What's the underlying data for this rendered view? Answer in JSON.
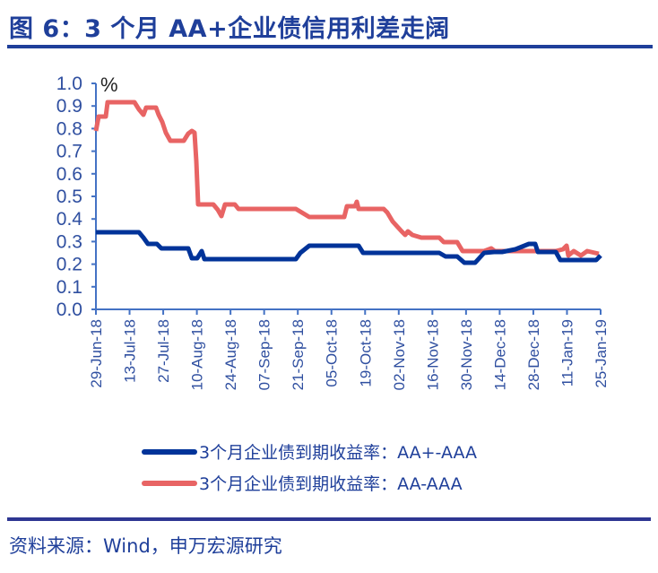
{
  "header": {
    "title": "图 6：3 个月 AA+企业债信用利差走阔"
  },
  "footer": {
    "source": "资料来源：Wind，申万宏源研究"
  },
  "legend": {
    "items": [
      {
        "label": "3个月企业债到期收益率：AA+-AAA",
        "color": "#003399"
      },
      {
        "label": "3个月企业债到期收益率：AA-AAA",
        "color": "#e86464"
      }
    ]
  },
  "chart_data": {
    "type": "line",
    "title": "图 6：3 个月 AA+企业债信用利差走阔",
    "xlabel": "",
    "ylabel": "%",
    "ylim": [
      0.0,
      1.0
    ],
    "yticks": [
      "1.0",
      "0.9",
      "0.8",
      "0.7",
      "0.6",
      "0.5",
      "0.4",
      "0.3",
      "0.2",
      "0.1",
      "0.0"
    ],
    "categories": [
      "29-Jun-18",
      "13-Jul-18",
      "27-Jul-18",
      "10-Aug-18",
      "24-Aug-18",
      "07-Sep-18",
      "21-Sep-18",
      "05-Oct-18",
      "19-Oct-18",
      "02-Nov-18",
      "16-Nov-18",
      "30-Nov-18",
      "14-Dec-18",
      "28-Dec-18",
      "11-Jan-19",
      "25-Jan-19"
    ],
    "grid": false,
    "legend_position": "bottom",
    "series": [
      {
        "name": "3个月企业债到期收益率：AA+-AAA",
        "color": "#003399",
        "values": [
          0.33,
          0.33,
          0.26,
          0.22,
          0.22,
          0.22,
          0.22,
          0.26,
          0.24,
          0.24,
          0.22,
          0.2,
          0.25,
          0.27,
          0.2,
          0.26
        ]
      },
      {
        "name": "3个月企业债到期收益率：AA-AAA",
        "color": "#e86464",
        "values": [
          0.8,
          0.92,
          0.86,
          0.46,
          0.43,
          0.43,
          0.43,
          0.4,
          0.42,
          0.38,
          0.32,
          0.25,
          0.25,
          0.24,
          0.23,
          0.23
        ]
      }
    ]
  }
}
